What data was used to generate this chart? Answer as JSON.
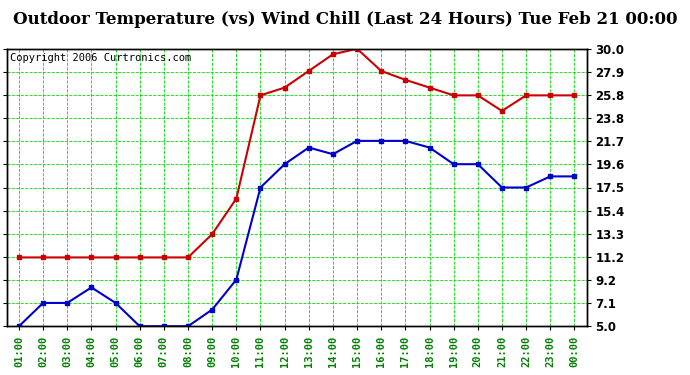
{
  "title": "Outdoor Temperature (vs) Wind Chill (Last 24 Hours) Tue Feb 21 00:00",
  "copyright": "Copyright 2006 Curtronics.com",
  "x_labels": [
    "01:00",
    "02:00",
    "03:00",
    "04:00",
    "05:00",
    "06:00",
    "07:00",
    "08:00",
    "09:00",
    "10:00",
    "11:00",
    "12:00",
    "13:00",
    "14:00",
    "15:00",
    "16:00",
    "17:00",
    "18:00",
    "19:00",
    "20:00",
    "21:00",
    "22:00",
    "23:00",
    "00:00"
  ],
  "temp_red": [
    11.2,
    11.2,
    11.2,
    11.2,
    11.2,
    11.2,
    11.2,
    11.2,
    13.3,
    16.5,
    25.8,
    26.5,
    28.0,
    29.5,
    30.0,
    28.0,
    27.2,
    26.5,
    25.8,
    25.8,
    24.4,
    25.8,
    25.8,
    25.8
  ],
  "temp_blue": [
    5.0,
    7.1,
    7.1,
    8.5,
    7.1,
    5.0,
    5.0,
    5.0,
    6.5,
    9.2,
    17.5,
    19.6,
    21.1,
    20.5,
    21.7,
    21.7,
    21.7,
    21.1,
    19.6,
    19.6,
    17.5,
    17.5,
    18.5,
    18.5
  ],
  "ylim": [
    5.0,
    30.0
  ],
  "yticks": [
    5.0,
    7.1,
    9.2,
    11.2,
    13.3,
    15.4,
    17.5,
    19.6,
    21.7,
    23.8,
    25.8,
    27.9,
    30.0
  ],
  "ytick_labels": [
    "5.0",
    "7.1",
    "9.2",
    "11.2",
    "13.3",
    "15.4",
    "17.5",
    "19.6",
    "21.7",
    "23.8",
    "25.8",
    "27.9",
    "30.0"
  ],
  "background_color": "#ffffff",
  "plot_bg_color": "#ffffff",
  "grid_color": "#00dd00",
  "red_line_color": "#cc0000",
  "blue_line_color": "#0000cc",
  "title_fontsize": 12,
  "copyright_fontsize": 7.5
}
